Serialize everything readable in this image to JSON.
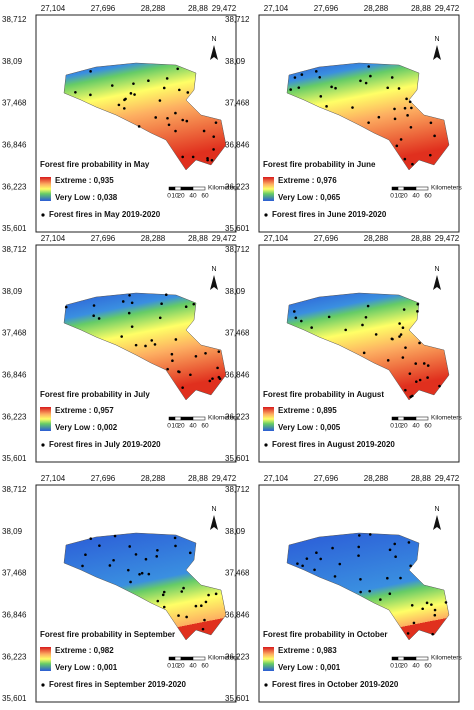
{
  "lon_ticks": [
    "27,104",
    "27,696",
    "28,288",
    "28,88",
    "29,472"
  ],
  "lat_ticks": [
    "38,712",
    "38,09",
    "37,468",
    "36,846",
    "36,223",
    "35,601"
  ],
  "north": "N",
  "scale": {
    "ticks": [
      "0",
      "10",
      "20",
      "40",
      "60"
    ],
    "unit": "Kilometers"
  },
  "panels": [
    {
      "title": "Forest fire probability in May",
      "extreme": "Extreme : 0,935",
      "very_low": "Very Low : 0,038",
      "fires": "Forest fires in May 2019-2020"
    },
    {
      "title": "Forest fire probability in June",
      "extreme": "Extreme : 0,976",
      "very_low": "Very Low : 0,065",
      "fires": "Forest fires in June 2019-2020"
    },
    {
      "title": "Forest fire probability in July",
      "extreme": "Extreme : 0,957",
      "very_low": "Very Low : 0,002",
      "fires": "Forest fires in July 2019-2020"
    },
    {
      "title": "Forest fire probability in August",
      "extreme": "Extreme : 0,895",
      "very_low": "Very Low : 0,005",
      "fires": "Forest fires in August 2019-2020"
    },
    {
      "title": "Forest fire probability in September",
      "extreme": "Extreme : 0,982",
      "very_low": "Very Low : 0,001",
      "fires": "Forest fires in September 2019-2020"
    },
    {
      "title": "Forest fire probability in October",
      "extreme": "Extreme : 0,983",
      "very_low": "Very Low : 0,001",
      "fires": "Forest fires in October 2019-2020"
    }
  ]
}
